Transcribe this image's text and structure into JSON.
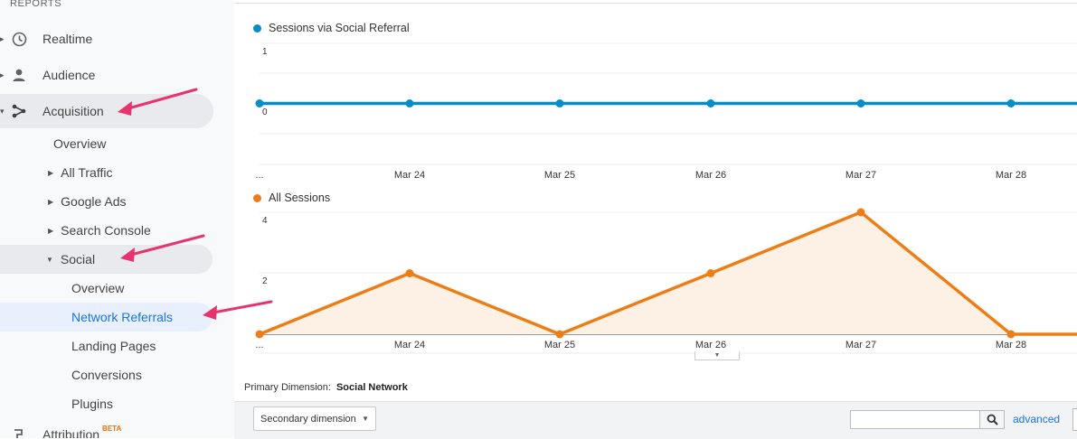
{
  "sidebar": {
    "section_label": "REPORTS",
    "items": [
      {
        "label": "Realtime",
        "icon": "clock-icon"
      },
      {
        "label": "Audience",
        "icon": "person-icon"
      },
      {
        "label": "Acquisition",
        "icon": "acquisition-icon"
      }
    ],
    "acquisition_children": [
      {
        "label": "Overview"
      },
      {
        "label": "All Traffic"
      },
      {
        "label": "Google Ads"
      },
      {
        "label": "Search Console"
      },
      {
        "label": "Social"
      }
    ],
    "social_children": [
      {
        "label": "Overview"
      },
      {
        "label": "Network Referrals"
      },
      {
        "label": "Landing Pages"
      },
      {
        "label": "Conversions"
      },
      {
        "label": "Plugins"
      }
    ],
    "attribution": {
      "label": "Attribution",
      "badge": "BETA"
    }
  },
  "colors": {
    "blue_series": "#058dc7",
    "orange_series": "#ed7e17",
    "annotation_arrow": "#e8336e",
    "selected_text": "#1a73e8"
  },
  "chart_data": [
    {
      "type": "line",
      "series": [
        {
          "name": "Sessions via Social Referral",
          "values": [
            0,
            0,
            0,
            0,
            0,
            0,
            0
          ]
        }
      ],
      "x": [
        "...",
        "Mar 24",
        "Mar 25",
        "Mar 26",
        "Mar 27",
        "Mar 28",
        ""
      ],
      "yticks": [
        "1",
        "0"
      ],
      "ylim": [
        -1,
        1
      ],
      "color": "#058dc7"
    },
    {
      "type": "area",
      "series": [
        {
          "name": "All Sessions",
          "values": [
            0,
            2,
            0,
            2,
            4,
            0,
            0
          ]
        }
      ],
      "x": [
        "...",
        "Mar 24",
        "Mar 25",
        "Mar 26",
        "Mar 27",
        "Mar 28",
        ""
      ],
      "yticks": [
        "4",
        "2"
      ],
      "ylim": [
        0,
        4
      ],
      "color": "#ed7e17"
    }
  ],
  "primary_dimension": {
    "label": "Primary Dimension:",
    "value": "Social Network"
  },
  "toolbar": {
    "secondary_dimension": "Secondary dimension",
    "search_value": "",
    "advanced_label": "advanced"
  }
}
